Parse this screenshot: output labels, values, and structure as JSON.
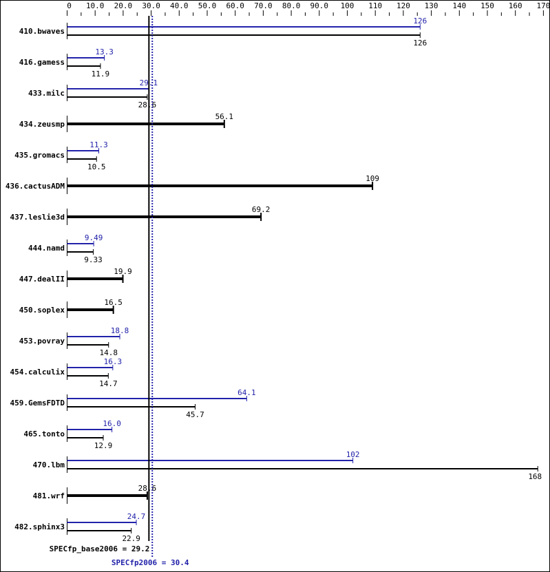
{
  "chart_data": {
    "type": "bar",
    "orientation": "horizontal",
    "xlim": [
      0,
      170
    ],
    "x_ticks": [
      "0",
      "10.0",
      "20.0",
      "30.0",
      "40.0",
      "50.0",
      "60.0",
      "70.0",
      "80.0",
      "90.0",
      "100",
      "110",
      "120",
      "130",
      "140",
      "150",
      "160",
      "170"
    ],
    "tick_values": [
      0,
      10,
      20,
      30,
      40,
      50,
      60,
      70,
      80,
      90,
      100,
      110,
      120,
      130,
      140,
      150,
      160,
      170
    ],
    "categories": [
      "410.bwaves",
      "416.gamess",
      "433.milc",
      "434.zeusmp",
      "435.gromacs",
      "436.cactusADM",
      "437.leslie3d",
      "444.namd",
      "447.dealII",
      "450.soplex",
      "453.povray",
      "454.calculix",
      "459.GemsFDTD",
      "465.tonto",
      "470.lbm",
      "481.wrf",
      "482.sphinx3"
    ],
    "series": [
      {
        "name": "SPECfp2006",
        "color": "#2222aa",
        "values": [
          126,
          13.3,
          29.1,
          null,
          11.3,
          null,
          null,
          9.49,
          null,
          null,
          18.8,
          16.3,
          64.1,
          16.0,
          102,
          null,
          24.7
        ],
        "labels": [
          "126",
          "13.3",
          "29.1",
          null,
          "11.3",
          null,
          null,
          "9.49",
          null,
          null,
          "18.8",
          "16.3",
          "64.1",
          "16.0",
          "102",
          null,
          "24.7"
        ]
      },
      {
        "name": "SPECfp_base2006",
        "color": "#000000",
        "values": [
          126,
          11.9,
          28.6,
          56.1,
          10.5,
          109,
          69.2,
          9.33,
          19.9,
          16.5,
          14.8,
          14.7,
          45.7,
          12.9,
          168,
          28.6,
          22.9
        ],
        "labels": [
          "126",
          "11.9",
          "28.6",
          "56.1",
          "10.5",
          "109",
          "69.2",
          "9.33",
          "19.9",
          "16.5",
          "14.8",
          "14.7",
          "45.7",
          "12.9",
          "168",
          "28.6",
          "22.9"
        ]
      }
    ],
    "base_equals_peak": [
      false,
      false,
      false,
      true,
      false,
      true,
      true,
      false,
      true,
      true,
      false,
      false,
      false,
      false,
      false,
      true,
      false
    ],
    "reference_lines": [
      {
        "label": "SPECfp_base2006 = 29.2",
        "value": 29.2,
        "color": "#000000",
        "style": "solid"
      },
      {
        "label": "SPECfp2006 = 30.4",
        "value": 30.4,
        "color": "#2222aa",
        "style": "dotted"
      }
    ],
    "grid": false
  }
}
